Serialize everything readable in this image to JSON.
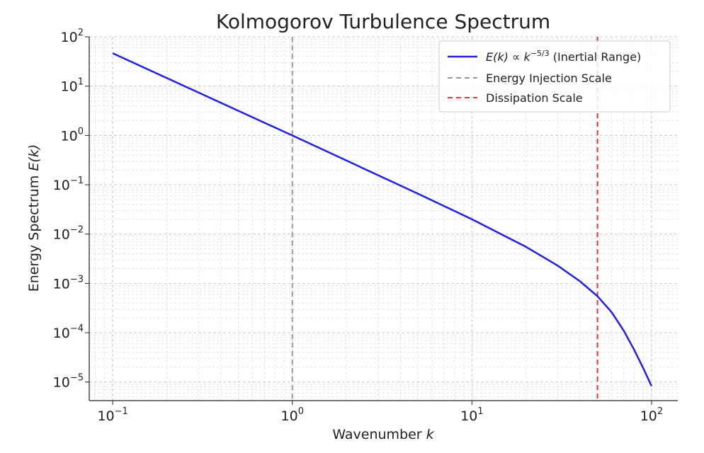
{
  "chart_data": {
    "type": "line",
    "title": "Kolmogorov Turbulence Spectrum",
    "xlabel": "Wavenumber",
    "xlabel_var": "k",
    "ylabel": "Energy Spectrum",
    "ylabel_var": "E(k)",
    "x_scale": "log",
    "y_scale": "log",
    "xlim": [
      0.074,
      140
    ],
    "ylim": [
      4.2e-06,
      100
    ],
    "grid": true,
    "legend_position": "top-right",
    "x_ticks": [
      {
        "value": 0.1,
        "base": "10",
        "exp": "−1"
      },
      {
        "value": 1,
        "base": "10",
        "exp": "0"
      },
      {
        "value": 10,
        "base": "10",
        "exp": "1"
      },
      {
        "value": 100,
        "base": "10",
        "exp": "2"
      }
    ],
    "y_ticks": [
      {
        "value": 1e-05,
        "base": "10",
        "exp": "−5"
      },
      {
        "value": 0.0001,
        "base": "10",
        "exp": "−4"
      },
      {
        "value": 0.001,
        "base": "10",
        "exp": "−3"
      },
      {
        "value": 0.01,
        "base": "10",
        "exp": "−2"
      },
      {
        "value": 0.1,
        "base": "10",
        "exp": "−1"
      },
      {
        "value": 1,
        "base": "10",
        "exp": "0"
      },
      {
        "value": 10,
        "base": "10",
        "exp": "1"
      },
      {
        "value": 100,
        "base": "10",
        "exp": "2"
      }
    ],
    "series": [
      {
        "name": "E(k) ∝ k^−5/3 (Inertial Range)",
        "legend_main": "E(k) ∝ k",
        "legend_sup": "−5/3",
        "legend_rest": " (Inertial Range)",
        "color": "#1f1fe6",
        "style": "solid",
        "x": [
          0.1,
          0.2,
          0.5,
          1,
          2,
          5,
          10,
          20,
          30,
          40,
          50,
          60,
          70,
          80,
          90,
          100
        ],
        "y": [
          46.4,
          14.6,
          3.16,
          1.0,
          0.31,
          0.066,
          0.02,
          0.0055,
          0.0023,
          0.0011,
          0.00055,
          0.00026,
          0.00011,
          4.5e-05,
          1.9e-05,
          8.3e-06
        ]
      }
    ],
    "vlines": [
      {
        "name": "Energy Injection Scale",
        "x": 1,
        "color": "#999999",
        "style": "dashed"
      },
      {
        "name": "Dissipation Scale",
        "x": 50,
        "color": "#e8333a",
        "style": "dashed"
      }
    ]
  }
}
